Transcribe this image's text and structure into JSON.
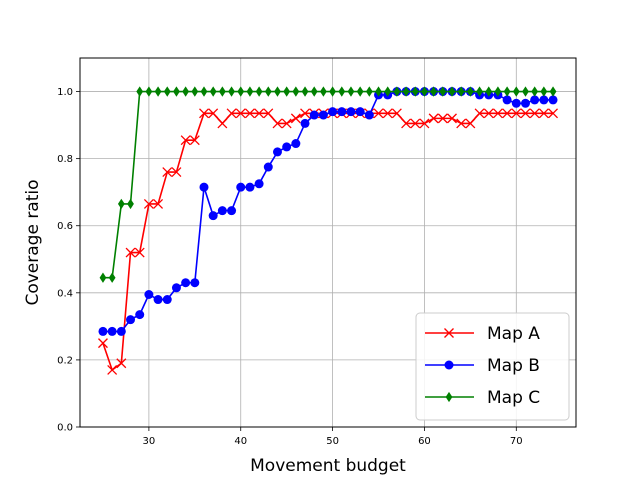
{
  "chart_data": {
    "type": "line",
    "title": "",
    "xlabel": "Movement budget",
    "ylabel": "Coverage ratio",
    "xlim": [
      22.5,
      76.5
    ],
    "ylim": [
      0.0,
      1.1
    ],
    "xticks": [
      30,
      40,
      50,
      60,
      70
    ],
    "yticks": [
      0.0,
      0.2,
      0.4,
      0.6,
      0.8,
      1.0
    ],
    "xtick_labels": [
      "30",
      "40",
      "50",
      "60",
      "70"
    ],
    "ytick_labels": [
      "0.0",
      "0.2",
      "0.4",
      "0.6",
      "0.8",
      "1.0"
    ],
    "grid": true,
    "legend_position": "lower-right",
    "x": [
      25,
      26,
      27,
      28,
      29,
      30,
      31,
      32,
      33,
      34,
      35,
      36,
      37,
      38,
      39,
      40,
      41,
      42,
      43,
      44,
      45,
      46,
      47,
      48,
      49,
      50,
      51,
      52,
      53,
      54,
      55,
      56,
      57,
      58,
      59,
      60,
      61,
      62,
      63,
      64,
      65,
      66,
      67,
      68,
      69,
      70,
      71,
      72,
      73,
      74
    ],
    "series": [
      {
        "name": "Map A",
        "color": "#ff0000",
        "marker": "x",
        "values": [
          0.25,
          0.17,
          0.19,
          0.52,
          0.52,
          0.665,
          0.665,
          0.76,
          0.76,
          0.855,
          0.855,
          0.935,
          0.935,
          0.905,
          0.935,
          0.935,
          0.935,
          0.935,
          0.935,
          0.905,
          0.905,
          0.92,
          0.935,
          0.935,
          0.935,
          0.935,
          0.935,
          0.935,
          0.935,
          0.935,
          0.935,
          0.935,
          0.935,
          0.905,
          0.905,
          0.905,
          0.92,
          0.92,
          0.92,
          0.905,
          0.905,
          0.935,
          0.935,
          0.935,
          0.935,
          0.935,
          0.935,
          0.935,
          0.935,
          0.935
        ]
      },
      {
        "name": "Map B",
        "color": "#0000ff",
        "marker": "o",
        "values": [
          0.285,
          0.285,
          0.285,
          0.32,
          0.335,
          0.395,
          0.38,
          0.38,
          0.415,
          0.43,
          0.43,
          0.715,
          0.63,
          0.645,
          0.645,
          0.715,
          0.715,
          0.725,
          0.775,
          0.82,
          0.835,
          0.845,
          0.905,
          0.93,
          0.93,
          0.94,
          0.94,
          0.94,
          0.94,
          0.93,
          0.99,
          0.99,
          1.0,
          1.0,
          1.0,
          1.0,
          1.0,
          1.0,
          1.0,
          1.0,
          1.0,
          0.99,
          0.99,
          0.99,
          0.975,
          0.965,
          0.965,
          0.975,
          0.975,
          0.975
        ]
      },
      {
        "name": "Map C",
        "color": "#008000",
        "marker": "d",
        "values": [
          0.445,
          0.445,
          0.665,
          0.665,
          1.0,
          1.0,
          1.0,
          1.0,
          1.0,
          1.0,
          1.0,
          1.0,
          1.0,
          1.0,
          1.0,
          1.0,
          1.0,
          1.0,
          1.0,
          1.0,
          1.0,
          1.0,
          1.0,
          1.0,
          1.0,
          1.0,
          1.0,
          1.0,
          1.0,
          1.0,
          1.0,
          1.0,
          1.0,
          1.0,
          1.0,
          1.0,
          1.0,
          1.0,
          1.0,
          1.0,
          1.0,
          1.0,
          1.0,
          1.0,
          1.0,
          1.0,
          1.0,
          1.0,
          1.0,
          1.0
        ]
      }
    ]
  }
}
